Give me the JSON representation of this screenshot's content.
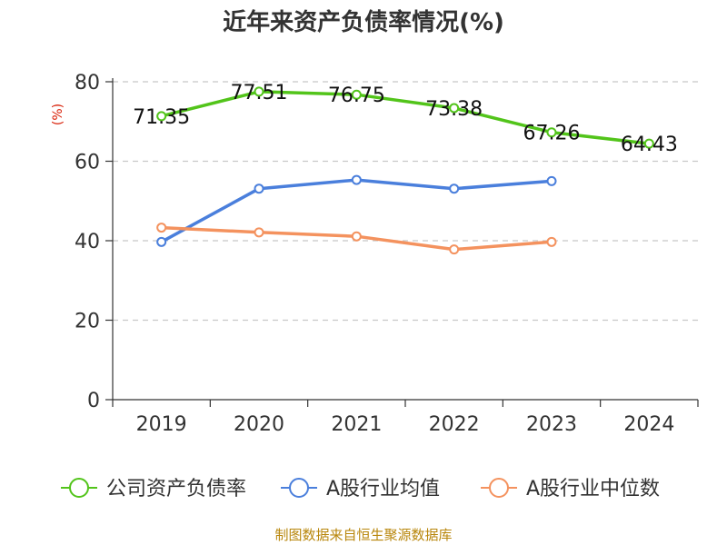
{
  "chart_data": {
    "type": "line",
    "title": "近年来资产负债率情况(%)",
    "ylabel": "(%)",
    "xlabel": "",
    "categories": [
      "2019",
      "2020",
      "2021",
      "2022",
      "2023",
      "2024"
    ],
    "ylim": [
      0,
      80
    ],
    "yticks": [
      0,
      20,
      40,
      60,
      80
    ],
    "grid": true,
    "legend_position": "bottom",
    "series": [
      {
        "name": "公司资产负债率",
        "color": "#52c41a",
        "values": [
          71.35,
          77.51,
          76.75,
          73.38,
          67.26,
          64.43
        ],
        "labels": [
          "71.35",
          "77.51",
          "76.75",
          "73.38",
          "67.26",
          "64.43"
        ]
      },
      {
        "name": "A股行业均值",
        "color": "#4a7fdc",
        "values": [
          39.7,
          53.1,
          55.3,
          53.1,
          55.0,
          null
        ],
        "labels": []
      },
      {
        "name": "A股行业中位数",
        "color": "#f4925e",
        "values": [
          43.3,
          42.1,
          41.1,
          37.8,
          39.7,
          null
        ],
        "labels": []
      }
    ],
    "source": "制图数据来自恒生聚源数据库"
  }
}
